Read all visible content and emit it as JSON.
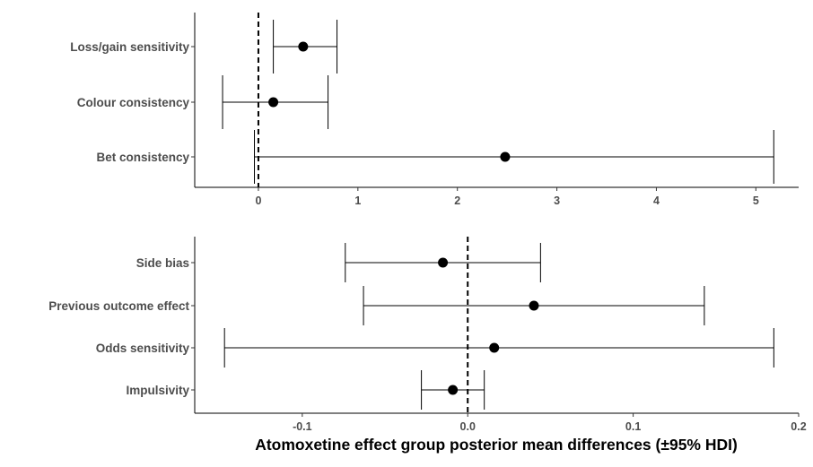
{
  "xlabel": "Atomoxetine effect group posterior mean differences (±95% HDI)",
  "chart_data": [
    {
      "type": "forest",
      "categories": [
        "Loss/gain sensitivity",
        "Colour consistency",
        "Bet consistency"
      ],
      "estimates": [
        0.45,
        0.15,
        2.48
      ],
      "lower": [
        0.15,
        -0.36,
        -0.04
      ],
      "upper": [
        0.79,
        0.7,
        5.18
      ],
      "xlim": [
        -0.64,
        5.43
      ],
      "xticks": [
        0,
        1,
        2,
        3,
        4,
        5
      ],
      "xtick_labels": [
        "0",
        "1",
        "2",
        "3",
        "4",
        "5"
      ],
      "reference_line": 0
    },
    {
      "type": "forest",
      "categories": [
        "Side bias",
        "Previous outcome effect",
        "Odds sensitivity",
        "Impulsivity"
      ],
      "estimates": [
        -0.015,
        0.04,
        0.016,
        -0.009
      ],
      "lower": [
        -0.074,
        -0.063,
        -0.147,
        -0.028
      ],
      "upper": [
        0.044,
        0.143,
        0.185,
        0.01
      ],
      "xlim": [
        -0.165,
        0.2
      ],
      "xticks": [
        -0.1,
        0,
        0.1,
        0.2
      ],
      "xtick_labels": [
        "-0.1",
        "0.0",
        "0.1",
        "0.2"
      ],
      "reference_line": 0
    }
  ]
}
